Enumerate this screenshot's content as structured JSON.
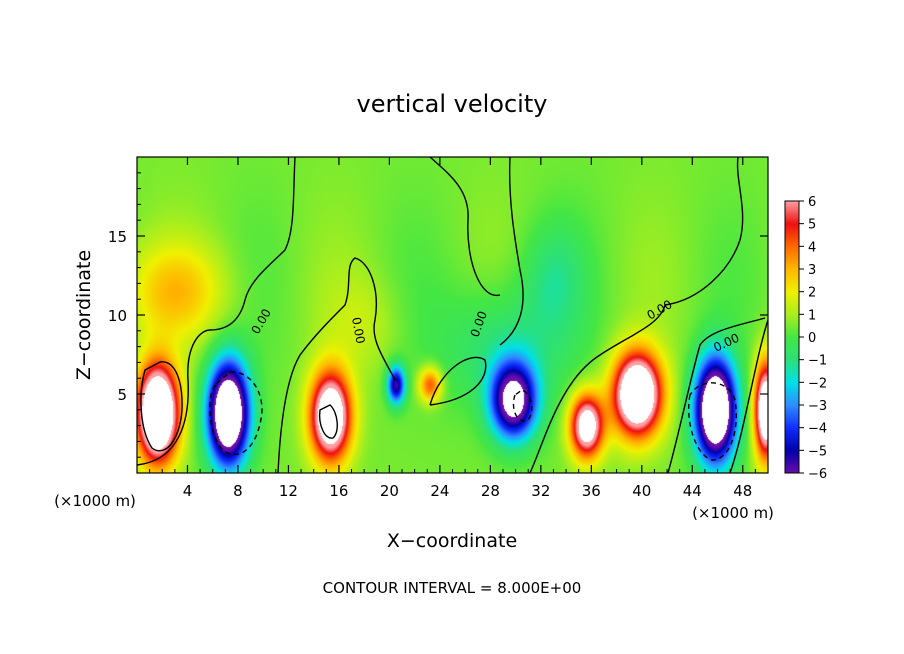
{
  "chart_data": {
    "type": "heatmap",
    "title": "vertical velocity",
    "xlabel": "X−coordinate",
    "ylabel": "Z−coordinate",
    "x_unit_left": "(×1000 m)",
    "x_unit_right": "(×1000 m)",
    "xlim": [
      0,
      50
    ],
    "ylim": [
      0,
      20
    ],
    "x_ticks": [
      4,
      8,
      12,
      16,
      20,
      24,
      28,
      32,
      36,
      40,
      44,
      48
    ],
    "x_tick_labels": [
      "4",
      "8",
      "12",
      "16",
      "20",
      "24",
      "28",
      "32",
      "36",
      "40",
      "44",
      "48"
    ],
    "y_ticks": [
      5,
      10,
      15
    ],
    "y_tick_labels": [
      "5",
      "10",
      "15"
    ],
    "colorbar": {
      "range": [
        -6,
        6
      ],
      "tick_labels": [
        "6",
        "5",
        "4",
        "3",
        "2",
        "1",
        "0",
        "−1",
        "−2",
        "−3",
        "−4",
        "−5",
        "−6"
      ],
      "colors": [
        {
          "v": -6.0,
          "c": "#6a0dad"
        },
        {
          "v": -5.0,
          "c": "#0000a8"
        },
        {
          "v": -4.0,
          "c": "#0f2dff"
        },
        {
          "v": -3.0,
          "c": "#2f8cff"
        },
        {
          "v": -2.0,
          "c": "#00e0e8"
        },
        {
          "v": -1.0,
          "c": "#2be07a"
        },
        {
          "v": 0.0,
          "c": "#44e644"
        },
        {
          "v": 1.0,
          "c": "#a8ee1e"
        },
        {
          "v": 2.0,
          "c": "#f0f000"
        },
        {
          "v": 3.0,
          "c": "#ffb800"
        },
        {
          "v": 4.0,
          "c": "#ff6a00"
        },
        {
          "v": 5.0,
          "c": "#ee1010"
        },
        {
          "v": 6.0,
          "c": "#ff9ea0"
        }
      ],
      "out_of_range_color": "#ffffff"
    },
    "features": [
      {
        "x": 1.6,
        "z": 3.8,
        "sx": 1.6,
        "sz": 3.0,
        "w": 11
      },
      {
        "x": 7.2,
        "z": 3.8,
        "sx": 1.6,
        "sz": 3.2,
        "w": -11
      },
      {
        "x": 15.3,
        "z": 3.6,
        "sx": 1.6,
        "sz": 2.8,
        "w": 9
      },
      {
        "x": 20.5,
        "z": 5.6,
        "sx": 0.7,
        "sz": 1.2,
        "w": -6
      },
      {
        "x": 23.2,
        "z": 5.6,
        "sx": 0.9,
        "sz": 1.1,
        "w": 4
      },
      {
        "x": 29.8,
        "z": 4.6,
        "sx": 1.8,
        "sz": 2.4,
        "w": -8
      },
      {
        "x": 35.6,
        "z": 3.0,
        "sx": 1.3,
        "sz": 2.0,
        "w": 8
      },
      {
        "x": 39.6,
        "z": 5.0,
        "sx": 1.9,
        "sz": 2.6,
        "w": 10
      },
      {
        "x": 45.8,
        "z": 4.0,
        "sx": 1.6,
        "sz": 3.2,
        "w": -11
      },
      {
        "x": 49.8,
        "z": 4.0,
        "sx": 0.9,
        "sz": 3.0,
        "w": 9
      },
      {
        "x": 3.0,
        "z": 11.5,
        "sx": 4.0,
        "sz": 3.0,
        "w": 2.2
      },
      {
        "x": 29.0,
        "z": 8.0,
        "sx": 5.0,
        "sz": 4.0,
        "w": -1.6
      },
      {
        "x": 33.0,
        "z": 12.5,
        "sx": 2.5,
        "sz": 3.5,
        "w": -1.2
      },
      {
        "x": 18.0,
        "z": 9.5,
        "sx": 3.0,
        "sz": 3.0,
        "w": 0.8
      }
    ],
    "contour_label": "0.00"
  },
  "annotation": "CONTOUR INTERVAL = 8.000E+00"
}
